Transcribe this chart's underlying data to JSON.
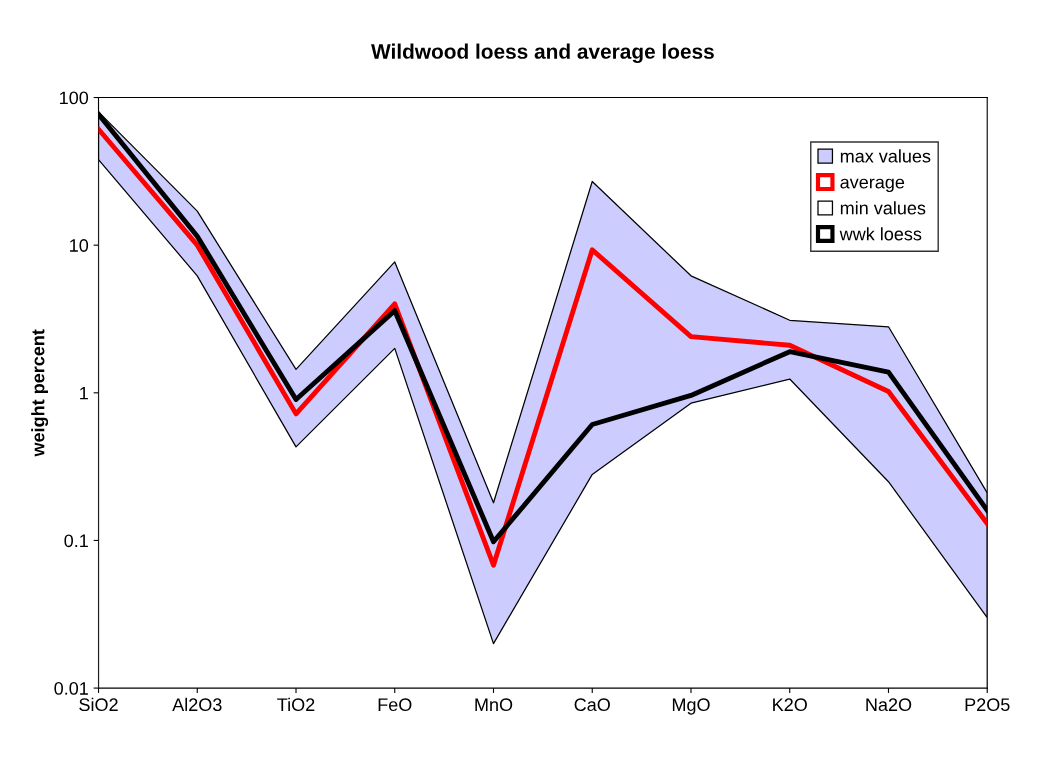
{
  "chart_data": {
    "type": "area",
    "title": "Wildwood loess and average loess",
    "ylabel": "weight percent",
    "categories": [
      "SiO2",
      "Al2O3",
      "TiO2",
      "FeO",
      "MnO",
      "CaO",
      "MgO",
      "K2O",
      "Na2O",
      "P2O5"
    ],
    "log": "y",
    "ylim": [
      0.01,
      100
    ],
    "yticks": [
      0.01,
      0.1,
      1,
      10,
      100
    ],
    "grid": false,
    "legend": "top right",
    "series": [
      {
        "name": "max values",
        "type": "area",
        "color": "#ccccff",
        "values": [
          80,
          17,
          1.44,
          7.7,
          0.18,
          27,
          6.2,
          3.1,
          2.8,
          0.21
        ]
      },
      {
        "name": "average",
        "type": "line",
        "color": "#ff0000",
        "values": [
          61,
          10,
          0.72,
          4.0,
          0.068,
          9.3,
          2.4,
          2.1,
          1.02,
          0.13
        ]
      },
      {
        "name": "min values",
        "type": "area",
        "color": "#ffffff",
        "values": [
          38,
          6.2,
          0.43,
          2.0,
          0.02,
          0.28,
          0.85,
          1.24,
          0.25,
          0.03
        ]
      },
      {
        "name": "wwk loess",
        "type": "line",
        "color": "#000000",
        "values": [
          77,
          11.5,
          0.9,
          3.6,
          0.098,
          0.61,
          0.96,
          1.9,
          1.38,
          0.16
        ]
      }
    ]
  }
}
